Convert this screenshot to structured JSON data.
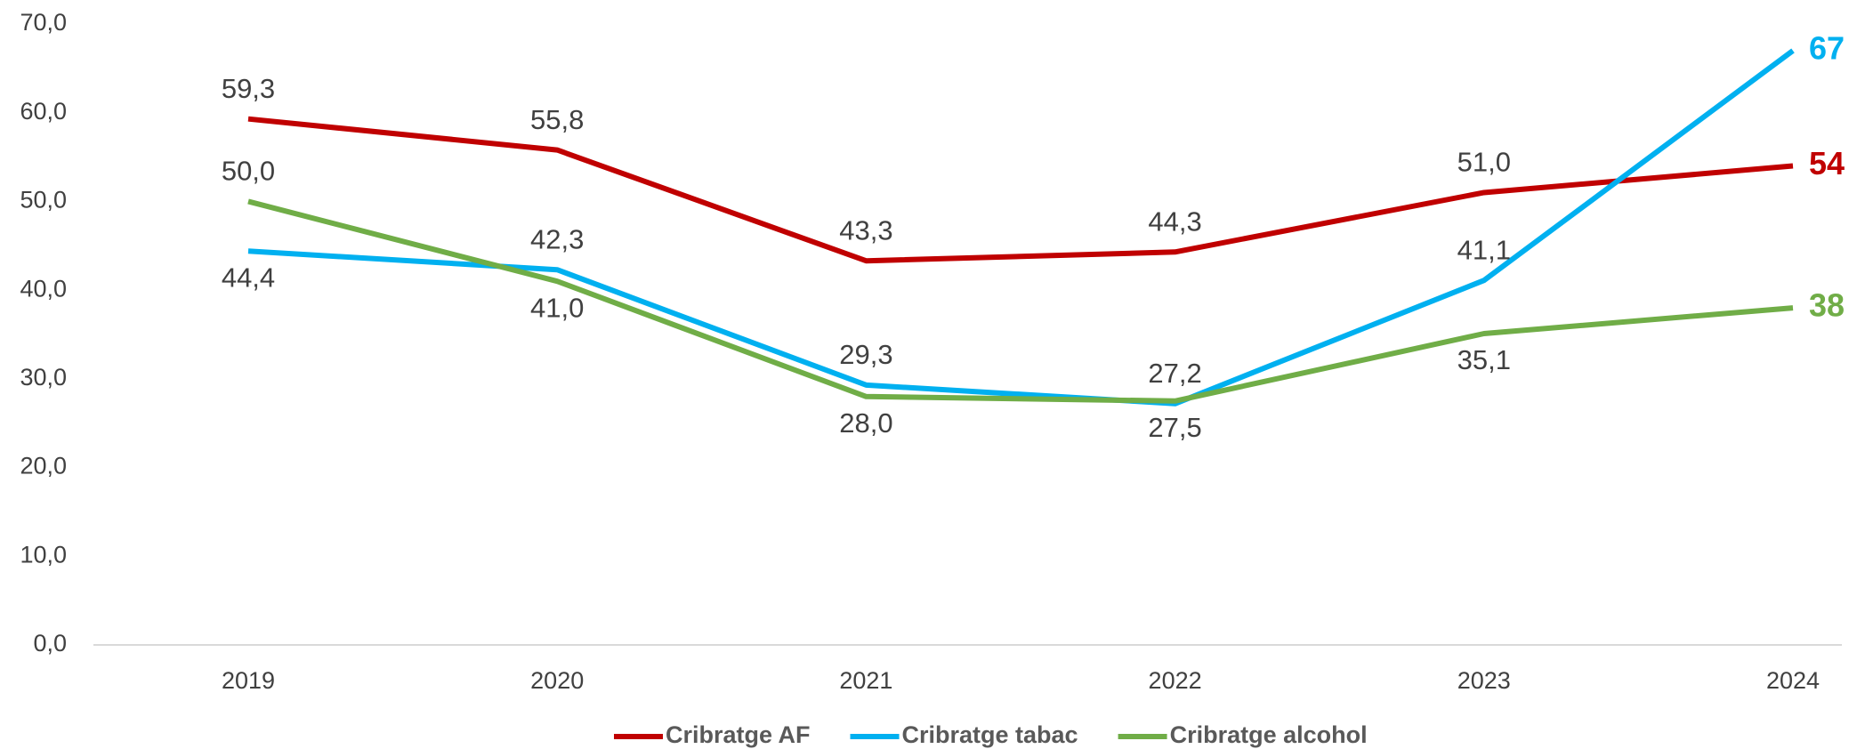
{
  "chart_data": {
    "type": "line",
    "categories": [
      "2019",
      "2020",
      "2021",
      "2022",
      "2023",
      "2024"
    ],
    "series": [
      {
        "name": "Cribratge AF",
        "color": "#c00000",
        "values": [
          59.3,
          55.8,
          43.3,
          44.3,
          51.0,
          54
        ],
        "value_labels": [
          "59,3",
          "55,8",
          "43,3",
          "44,3",
          "51,0",
          "54"
        ]
      },
      {
        "name": "Cribratge tabac",
        "color": "#00b0f0",
        "values": [
          44.4,
          42.3,
          29.3,
          27.2,
          41.1,
          67
        ],
        "value_labels": [
          "44,4",
          "42,3",
          "29,3",
          "27,2",
          "41,1",
          "67"
        ]
      },
      {
        "name": "Cribratge alcohol",
        "color": "#70ad47",
        "values": [
          50.0,
          41.0,
          28.0,
          27.5,
          35.1,
          38
        ],
        "value_labels": [
          "50,0",
          "41,0",
          "28,0",
          "27,5",
          "35,1",
          "38"
        ]
      }
    ],
    "ylim": [
      0,
      70
    ],
    "yticks": [
      {
        "value": 0,
        "label": "0,0"
      },
      {
        "value": 10,
        "label": "10,0"
      },
      {
        "value": 20,
        "label": "20,0"
      },
      {
        "value": 30,
        "label": "30,0"
      },
      {
        "value": 40,
        "label": "40,0"
      },
      {
        "value": 50,
        "label": "50,0"
      },
      {
        "value": 60,
        "label": "60,0"
      },
      {
        "value": 70,
        "label": "70,0"
      }
    ],
    "grid": false,
    "legend": "bottom"
  }
}
